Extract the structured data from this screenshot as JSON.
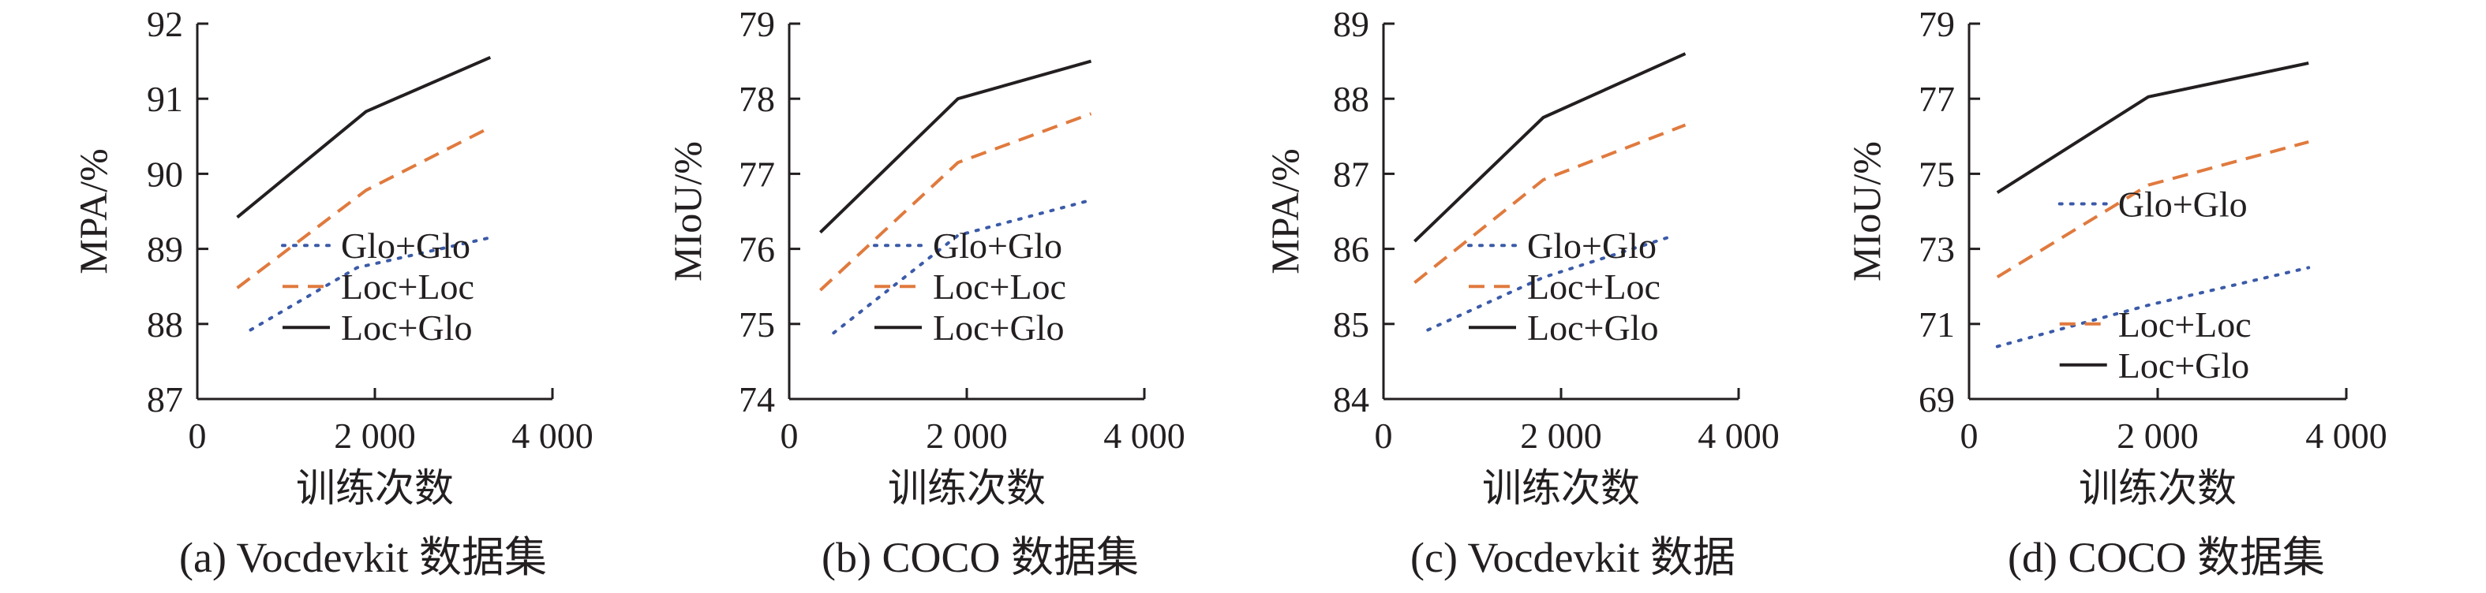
{
  "colors": {
    "axis": "#231f20",
    "glo_glo": "#3b5aa8",
    "loc_loc": "#e07a3e",
    "loc_glo": "#231f20"
  },
  "chart_data": [
    {
      "type": "line",
      "caption": "(a) Vocdevkit 数据集",
      "xlabel": "训练次数",
      "ylabel": "MPA/%",
      "xlim": [
        0,
        4000
      ],
      "xticks": [
        {
          "v": 0,
          "label": "0"
        },
        {
          "v": 2000,
          "label": "2 000"
        },
        {
          "v": 4000,
          "label": "4 000"
        }
      ],
      "ylim": [
        87,
        92
      ],
      "yticks": [
        {
          "v": 87,
          "label": "87"
        },
        {
          "v": 88,
          "label": "88"
        },
        {
          "v": 89,
          "label": "89"
        },
        {
          "v": 90,
          "label": "90"
        },
        {
          "v": 91,
          "label": "91"
        },
        {
          "v": 92,
          "label": "92"
        }
      ],
      "legend_y": 88.5,
      "series": [
        {
          "name": "Glo+Glo",
          "style": "dotted",
          "color": "#3b5aa8",
          "points": [
            [
              600,
              87.92
            ],
            [
              1800,
              88.75
            ],
            [
              3300,
              89.15
            ]
          ]
        },
        {
          "name": "Loc+Loc",
          "style": "dashed",
          "color": "#e07a3e",
          "points": [
            [
              450,
              88.48
            ],
            [
              1900,
              89.78
            ],
            [
              3300,
              90.62
            ]
          ]
        },
        {
          "name": "Loc+Glo",
          "style": "solid",
          "color": "#231f20",
          "points": [
            [
              450,
              89.42
            ],
            [
              1900,
              90.83
            ],
            [
              3300,
              91.55
            ]
          ]
        }
      ]
    },
    {
      "type": "line",
      "caption": "(b) COCO 数据集",
      "xlabel": "训练次数",
      "ylabel": "MIoU/%",
      "xlim": [
        0,
        4000
      ],
      "xticks": [
        {
          "v": 0,
          "label": "0"
        },
        {
          "v": 2000,
          "label": "2 000"
        },
        {
          "v": 4000,
          "label": "4 000"
        }
      ],
      "ylim": [
        74,
        79
      ],
      "yticks": [
        {
          "v": 74,
          "label": "74"
        },
        {
          "v": 75,
          "label": "75"
        },
        {
          "v": 76,
          "label": "76"
        },
        {
          "v": 77,
          "label": "77"
        },
        {
          "v": 78,
          "label": "78"
        },
        {
          "v": 79,
          "label": "79"
        }
      ],
      "legend_y": 75.5,
      "series": [
        {
          "name": "Glo+Glo",
          "style": "dotted",
          "color": "#3b5aa8",
          "points": [
            [
              500,
              74.88
            ],
            [
              1900,
              76.18
            ],
            [
              3400,
              76.65
            ]
          ]
        },
        {
          "name": "Loc+Loc",
          "style": "dashed",
          "color": "#e07a3e",
          "points": [
            [
              350,
              75.45
            ],
            [
              1900,
              77.15
            ],
            [
              3400,
              77.8
            ]
          ]
        },
        {
          "name": "Loc+Glo",
          "style": "solid",
          "color": "#231f20",
          "points": [
            [
              350,
              76.22
            ],
            [
              1900,
              78.0
            ],
            [
              3400,
              78.5
            ]
          ]
        }
      ]
    },
    {
      "type": "line",
      "caption": "(c) Vocdevkit 数据",
      "xlabel": "训练次数",
      "ylabel": "MPA/%",
      "xlim": [
        0,
        4000
      ],
      "xticks": [
        {
          "v": 0,
          "label": "0"
        },
        {
          "v": 2000,
          "label": "2 000"
        },
        {
          "v": 4000,
          "label": "4 000"
        }
      ],
      "ylim": [
        84,
        89
      ],
      "yticks": [
        {
          "v": 84,
          "label": "84"
        },
        {
          "v": 85,
          "label": "85"
        },
        {
          "v": 86,
          "label": "86"
        },
        {
          "v": 87,
          "label": "87"
        },
        {
          "v": 88,
          "label": "88"
        },
        {
          "v": 89,
          "label": "89"
        }
      ],
      "legend_y": 85.5,
      "series": [
        {
          "name": "Glo+Glo",
          "style": "dotted",
          "color": "#3b5aa8",
          "points": [
            [
              500,
              84.92
            ],
            [
              1800,
              85.62
            ],
            [
              3200,
              86.15
            ]
          ]
        },
        {
          "name": "Loc+Loc",
          "style": "dashed",
          "color": "#e07a3e",
          "points": [
            [
              350,
              85.55
            ],
            [
              1800,
              86.92
            ],
            [
              3400,
              87.65
            ]
          ]
        },
        {
          "name": "Loc+Glo",
          "style": "solid",
          "color": "#231f20",
          "points": [
            [
              350,
              86.1
            ],
            [
              1800,
              87.75
            ],
            [
              3400,
              88.6
            ]
          ]
        }
      ]
    },
    {
      "type": "line",
      "caption": "(d) COCO 数据集",
      "xlabel": "训练次数",
      "ylabel": "MIoU/%",
      "xlim": [
        0,
        4000
      ],
      "xticks": [
        {
          "v": 0,
          "label": "0"
        },
        {
          "v": 2000,
          "label": "2 000"
        },
        {
          "v": 4000,
          "label": "4 000"
        }
      ],
      "ylim": [
        69,
        79
      ],
      "yticks": [
        {
          "v": 69,
          "label": "69"
        },
        {
          "v": 71,
          "label": "71"
        },
        {
          "v": 73,
          "label": "73"
        },
        {
          "v": 75,
          "label": "75"
        },
        {
          "v": 77,
          "label": "77"
        },
        {
          "v": 79,
          "label": "79"
        }
      ],
      "legend_y": 71.0,
      "series": [
        {
          "name": "Glo+Glo",
          "style": "dotted",
          "color": "#3b5aa8",
          "points": [
            [
              300,
              70.4
            ],
            [
              1900,
              71.5
            ],
            [
              3600,
              72.5
            ]
          ],
          "legend_y": 74.2
        },
        {
          "name": "Loc+Loc",
          "style": "dashed",
          "color": "#e07a3e",
          "points": [
            [
              300,
              72.25
            ],
            [
              1900,
              74.7
            ],
            [
              3600,
              75.85
            ]
          ]
        },
        {
          "name": "Loc+Glo",
          "style": "solid",
          "color": "#231f20",
          "points": [
            [
              300,
              74.5
            ],
            [
              1900,
              77.05
            ],
            [
              3600,
              77.95
            ]
          ]
        }
      ]
    }
  ]
}
